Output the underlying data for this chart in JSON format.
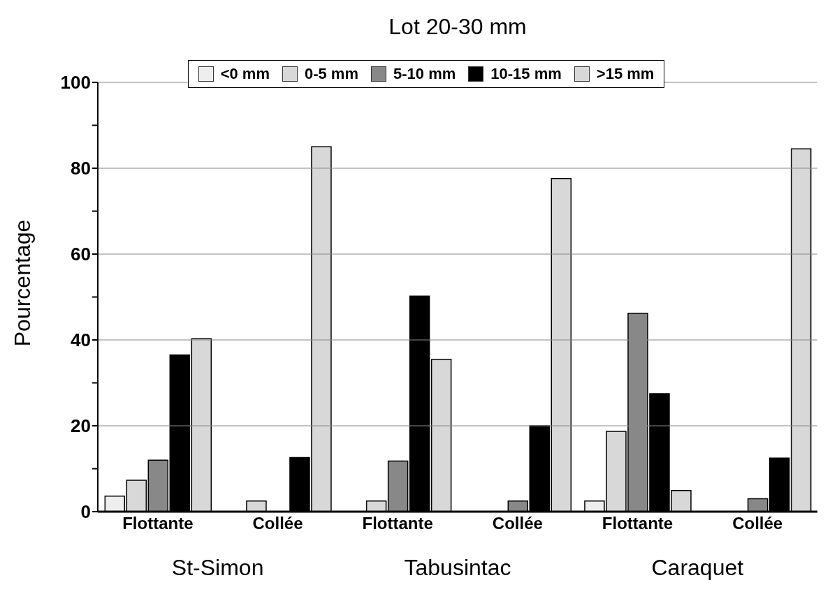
{
  "chart_data": {
    "type": "bar",
    "title": "Lot 20-30 mm",
    "ylabel": "Pourcentage",
    "categories": [
      "Flottante",
      "Collée",
      "Flottante",
      "Collée",
      "Flottante",
      "Collée"
    ],
    "annotations": [
      "St-Simon",
      "Tabusintac",
      "Caraquet"
    ],
    "series": [
      {
        "name": "<0 mm",
        "color": "#eeeeee",
        "values": [
          3.6,
          0,
          0,
          0,
          2.5,
          0
        ]
      },
      {
        "name": "0-5 mm",
        "color": "#d8d8d8",
        "values": [
          7.3,
          2.5,
          2.5,
          0,
          18.7,
          0
        ]
      },
      {
        "name": "5-10 mm",
        "color": "#888888",
        "values": [
          12,
          0,
          11.8,
          2.5,
          46.2,
          3
        ]
      },
      {
        "name": "10-15 mm",
        "color": "#000000",
        "values": [
          36.5,
          12.6,
          50.2,
          20,
          27.5,
          12.5
        ]
      },
      {
        "name": ">15 mm",
        "color": "#d8d8d8",
        "values": [
          40.3,
          85,
          35.5,
          77.6,
          4.9,
          84.5
        ]
      }
    ],
    "ylim": [
      0,
      100
    ],
    "yticks": [
      0,
      {
        "value": 10,
        "label": null
      },
      20,
      {
        "value": 30,
        "label": null
      },
      40,
      {
        "value": 50,
        "label": null
      },
      60,
      {
        "value": 70,
        "label": null
      },
      80,
      {
        "value": 90,
        "label": null
      },
      100
    ],
    "grid": "y",
    "legend": "top"
  }
}
